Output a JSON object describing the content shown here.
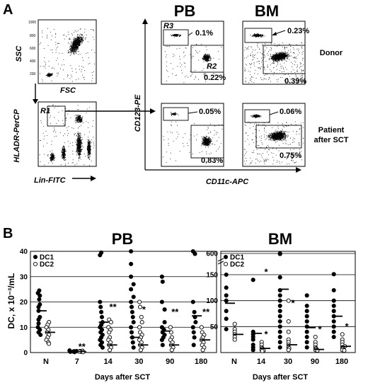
{
  "panel_a": {
    "letter": "A",
    "pb_title": "PB",
    "bm_title": "BM",
    "ssc_label": "SSC",
    "fsc_label": "FSC",
    "hla_label": "HLADR-PerCP",
    "lin_label": "Lin-FITC",
    "cd123_label": "CD123-PE",
    "cd11c_label": "CD11c-APC",
    "gate_r1": "R1",
    "gate_r2": "R2",
    "gate_r3": "R3",
    "donor_label": "Donor",
    "patient_label_1": "Patient",
    "patient_label_2": "after SCT",
    "pct_pb_donor_r3": "0.1%",
    "pct_pb_donor_r2": "0.22%",
    "pct_bm_donor_r3": "0.23%",
    "pct_bm_donor_r2": "0.39%",
    "pct_pb_patient_r3": "0.05%",
    "pct_pb_patient_r2": "0.83%",
    "pct_bm_patient_r3": "0.06%",
    "pct_bm_patient_r2": "0.75%"
  },
  "panel_b": {
    "letter": "B",
    "ylabel": "DC, x 10⁻³/mL",
    "xlabel": "Days after SCT",
    "legend_dc1": "DC1",
    "legend_dc2": "DC2"
  },
  "chart_data": [
    {
      "type": "scatter",
      "title": "PB",
      "xlabel": "Days after SCT",
      "ylabel": "DC, x 10⁻³/mL",
      "categories": [
        "N",
        "7",
        "14",
        "30",
        "90",
        "180"
      ],
      "ylim": [
        0,
        40
      ],
      "yticks": [
        0,
        10,
        20,
        30,
        40
      ],
      "grid": true,
      "legend": "top-left",
      "series": [
        {
          "name": "DC1",
          "marker": "filled",
          "points": [
            [
              0,
              24.5
            ],
            [
              0,
              23.5
            ],
            [
              0,
              22.5
            ],
            [
              0,
              21
            ],
            [
              0,
              19
            ],
            [
              0,
              18
            ],
            [
              0,
              16.5
            ],
            [
              0,
              14
            ],
            [
              0,
              13
            ],
            [
              0,
              11.5
            ],
            [
              0,
              10
            ],
            [
              0,
              9
            ],
            [
              0,
              8
            ],
            [
              0,
              7
            ],
            [
              1,
              0.8
            ],
            [
              1,
              0.5
            ],
            [
              1,
              0.3
            ],
            [
              1,
              0.6
            ],
            [
              1,
              0.4
            ],
            [
              1,
              0.2
            ],
            [
              2,
              39.5
            ],
            [
              2,
              38.5
            ],
            [
              2,
              20
            ],
            [
              2,
              18
            ],
            [
              2,
              16
            ],
            [
              2,
              14
            ],
            [
              2,
              12
            ],
            [
              2,
              11
            ],
            [
              2,
              10
            ],
            [
              2,
              9
            ],
            [
              2,
              8
            ],
            [
              2,
              7
            ],
            [
              2,
              6
            ],
            [
              2,
              5
            ],
            [
              2,
              4
            ],
            [
              2,
              3
            ],
            [
              2,
              2
            ],
            [
              3,
              40
            ],
            [
              3,
              35
            ],
            [
              3,
              30
            ],
            [
              3,
              27
            ],
            [
              3,
              25
            ],
            [
              3,
              22
            ],
            [
              3,
              20
            ],
            [
              3,
              18
            ],
            [
              3,
              16
            ],
            [
              3,
              14
            ],
            [
              3,
              12
            ],
            [
              3,
              10
            ],
            [
              3,
              8
            ],
            [
              3,
              6
            ],
            [
              3,
              4
            ],
            [
              3,
              2
            ],
            [
              4,
              30
            ],
            [
              4,
              28
            ],
            [
              4,
              20
            ],
            [
              4,
              17
            ],
            [
              4,
              12
            ],
            [
              4,
              10
            ],
            [
              4,
              9
            ],
            [
              4,
              8
            ],
            [
              4,
              7
            ],
            [
              4,
              6
            ],
            [
              4,
              5
            ],
            [
              4,
              3
            ],
            [
              5,
              40
            ],
            [
              5,
              39
            ],
            [
              5,
              20
            ],
            [
              5,
              16
            ],
            [
              5,
              14
            ],
            [
              5,
              12
            ],
            [
              5,
              10
            ],
            [
              5,
              8
            ],
            [
              5,
              6
            ],
            [
              5,
              3
            ]
          ]
        },
        {
          "name": "DC2",
          "marker": "open",
          "points": [
            [
              0,
              12
            ],
            [
              0,
              11
            ],
            [
              0,
              10
            ],
            [
              0,
              9
            ],
            [
              0,
              8
            ],
            [
              0,
              7
            ],
            [
              0,
              6
            ],
            [
              0,
              5
            ],
            [
              0,
              4
            ],
            [
              0,
              3.5
            ],
            [
              1,
              0.6
            ],
            [
              1,
              0.4
            ],
            [
              1,
              0.5
            ],
            [
              1,
              0.3
            ],
            [
              1,
              0.7
            ],
            [
              1,
              0.2
            ],
            [
              1,
              0.5
            ],
            [
              1,
              0.4
            ],
            [
              2,
              13
            ],
            [
              2,
              12
            ],
            [
              2,
              10
            ],
            [
              2,
              9
            ],
            [
              2,
              8
            ],
            [
              2,
              6
            ],
            [
              2,
              5
            ],
            [
              2,
              4
            ],
            [
              2,
              3
            ],
            [
              2,
              2
            ],
            [
              2,
              1
            ],
            [
              3,
              20
            ],
            [
              3,
              18
            ],
            [
              3,
              14
            ],
            [
              3,
              12
            ],
            [
              3,
              10
            ],
            [
              3,
              8
            ],
            [
              3,
              7
            ],
            [
              3,
              6
            ],
            [
              3,
              5
            ],
            [
              3,
              4
            ],
            [
              3,
              3
            ],
            [
              3,
              2
            ],
            [
              3,
              1
            ],
            [
              4,
              10
            ],
            [
              4,
              8
            ],
            [
              4,
              6
            ],
            [
              4,
              5
            ],
            [
              4,
              4
            ],
            [
              4,
              3
            ],
            [
              4,
              2
            ],
            [
              4,
              1
            ],
            [
              5,
              10
            ],
            [
              5,
              8
            ],
            [
              5,
              7
            ],
            [
              5,
              6
            ],
            [
              5,
              5
            ],
            [
              5,
              4
            ],
            [
              5,
              3
            ],
            [
              5,
              2
            ],
            [
              5,
              1
            ]
          ]
        }
      ],
      "medians": [
        {
          "category": 0,
          "DC1": 16.5,
          "DC2": 8
        },
        {
          "category": 1,
          "DC1": 0.3,
          "DC2": 0.4
        },
        {
          "category": 2,
          "DC1": 12,
          "DC2": 3
        },
        {
          "category": 3,
          "DC1": 6,
          "DC2": 3
        },
        {
          "category": 4,
          "DC1": 8.5,
          "DC2": 3
        },
        {
          "category": 5,
          "DC1": 14.5,
          "DC2": 5
        }
      ],
      "annotations": [
        {
          "category": 1,
          "text": "**",
          "y": 0.3
        },
        {
          "category": 2,
          "text": "**",
          "y": 16
        },
        {
          "category": 3,
          "text": "*",
          "y": 15
        },
        {
          "category": 4,
          "text": "**",
          "y": 14
        },
        {
          "category": 5,
          "text": "**",
          "y": 14
        }
      ]
    },
    {
      "type": "scatter",
      "title": "BM",
      "xlabel": "Days after SCT",
      "categories": [
        "N",
        "14",
        "30",
        "90",
        "180"
      ],
      "ylim": [
        0,
        600
      ],
      "yticks": [
        50,
        100,
        150,
        600
      ],
      "axis_break": true,
      "grid": true,
      "legend": "top-left",
      "series": [
        {
          "name": "DC1",
          "marker": "filled",
          "points": [
            [
              0,
              150
            ],
            [
              0,
              125
            ],
            [
              0,
              110
            ],
            [
              0,
              100
            ],
            [
              0,
              80
            ],
            [
              0,
              65
            ],
            [
              0,
              45
            ],
            [
              1,
              140
            ],
            [
              1,
              40
            ],
            [
              1,
              35
            ],
            [
              1,
              30
            ],
            [
              1,
              25
            ],
            [
              1,
              15
            ],
            [
              1,
              10
            ],
            [
              1,
              5
            ],
            [
              2,
              600
            ],
            [
              2,
              590
            ],
            [
              2,
              145
            ],
            [
              2,
              120
            ],
            [
              2,
              110
            ],
            [
              2,
              100
            ],
            [
              2,
              90
            ],
            [
              2,
              80
            ],
            [
              2,
              70
            ],
            [
              2,
              60
            ],
            [
              2,
              50
            ],
            [
              2,
              40
            ],
            [
              2,
              30
            ],
            [
              2,
              20
            ],
            [
              2,
              10
            ],
            [
              3,
              110
            ],
            [
              3,
              90
            ],
            [
              3,
              80
            ],
            [
              3,
              70
            ],
            [
              3,
              60
            ],
            [
              3,
              50
            ],
            [
              3,
              40
            ],
            [
              3,
              30
            ],
            [
              3,
              20
            ],
            [
              3,
              10
            ],
            [
              4,
              160
            ],
            [
              4,
              120
            ],
            [
              4,
              100
            ],
            [
              4,
              90
            ],
            [
              4,
              80
            ],
            [
              4,
              70
            ],
            [
              4,
              60
            ],
            [
              4,
              50
            ],
            [
              4,
              40
            ],
            [
              4,
              30
            ]
          ]
        },
        {
          "name": "DC2",
          "marker": "open",
          "points": [
            [
              0,
              55
            ],
            [
              0,
              45
            ],
            [
              0,
              40
            ],
            [
              0,
              35
            ],
            [
              0,
              30
            ],
            [
              0,
              25
            ],
            [
              1,
              20
            ],
            [
              1,
              15
            ],
            [
              1,
              10
            ],
            [
              1,
              8
            ],
            [
              1,
              6
            ],
            [
              1,
              5
            ],
            [
              1,
              4
            ],
            [
              1,
              3
            ],
            [
              2,
              100
            ],
            [
              2,
              60
            ],
            [
              2,
              40
            ],
            [
              2,
              25
            ],
            [
              2,
              20
            ],
            [
              2,
              15
            ],
            [
              2,
              10
            ],
            [
              2,
              8
            ],
            [
              2,
              5
            ],
            [
              3,
              30
            ],
            [
              3,
              20
            ],
            [
              3,
              15
            ],
            [
              3,
              10
            ],
            [
              3,
              8
            ],
            [
              3,
              6
            ],
            [
              3,
              5
            ],
            [
              3,
              4
            ],
            [
              4,
              35
            ],
            [
              4,
              25
            ],
            [
              4,
              20
            ],
            [
              4,
              15
            ],
            [
              4,
              12
            ],
            [
              4,
              10
            ],
            [
              4,
              8
            ],
            [
              4,
              6
            ],
            [
              4,
              5
            ],
            [
              4,
              4
            ]
          ]
        }
      ],
      "medians": [
        {
          "category": 0,
          "DC1": 95,
          "DC2": 35
        },
        {
          "category": 1,
          "DC1": 37,
          "DC2": 8
        },
        {
          "category": 2,
          "DC1": 122,
          "DC2": 15
        },
        {
          "category": 3,
          "DC1": 48,
          "DC2": 6
        },
        {
          "category": 4,
          "DC1": 70,
          "DC2": 12
        }
      ],
      "annotations": [
        {
          "category": 1,
          "text": "*",
          "y": 145
        },
        {
          "category": 1,
          "text": "*",
          "y": 25
        },
        {
          "category": 2,
          "text": "*",
          "y": 85
        },
        {
          "category": 3,
          "text": "*",
          "y": 35
        },
        {
          "category": 4,
          "text": "*",
          "y": 40
        }
      ]
    }
  ]
}
